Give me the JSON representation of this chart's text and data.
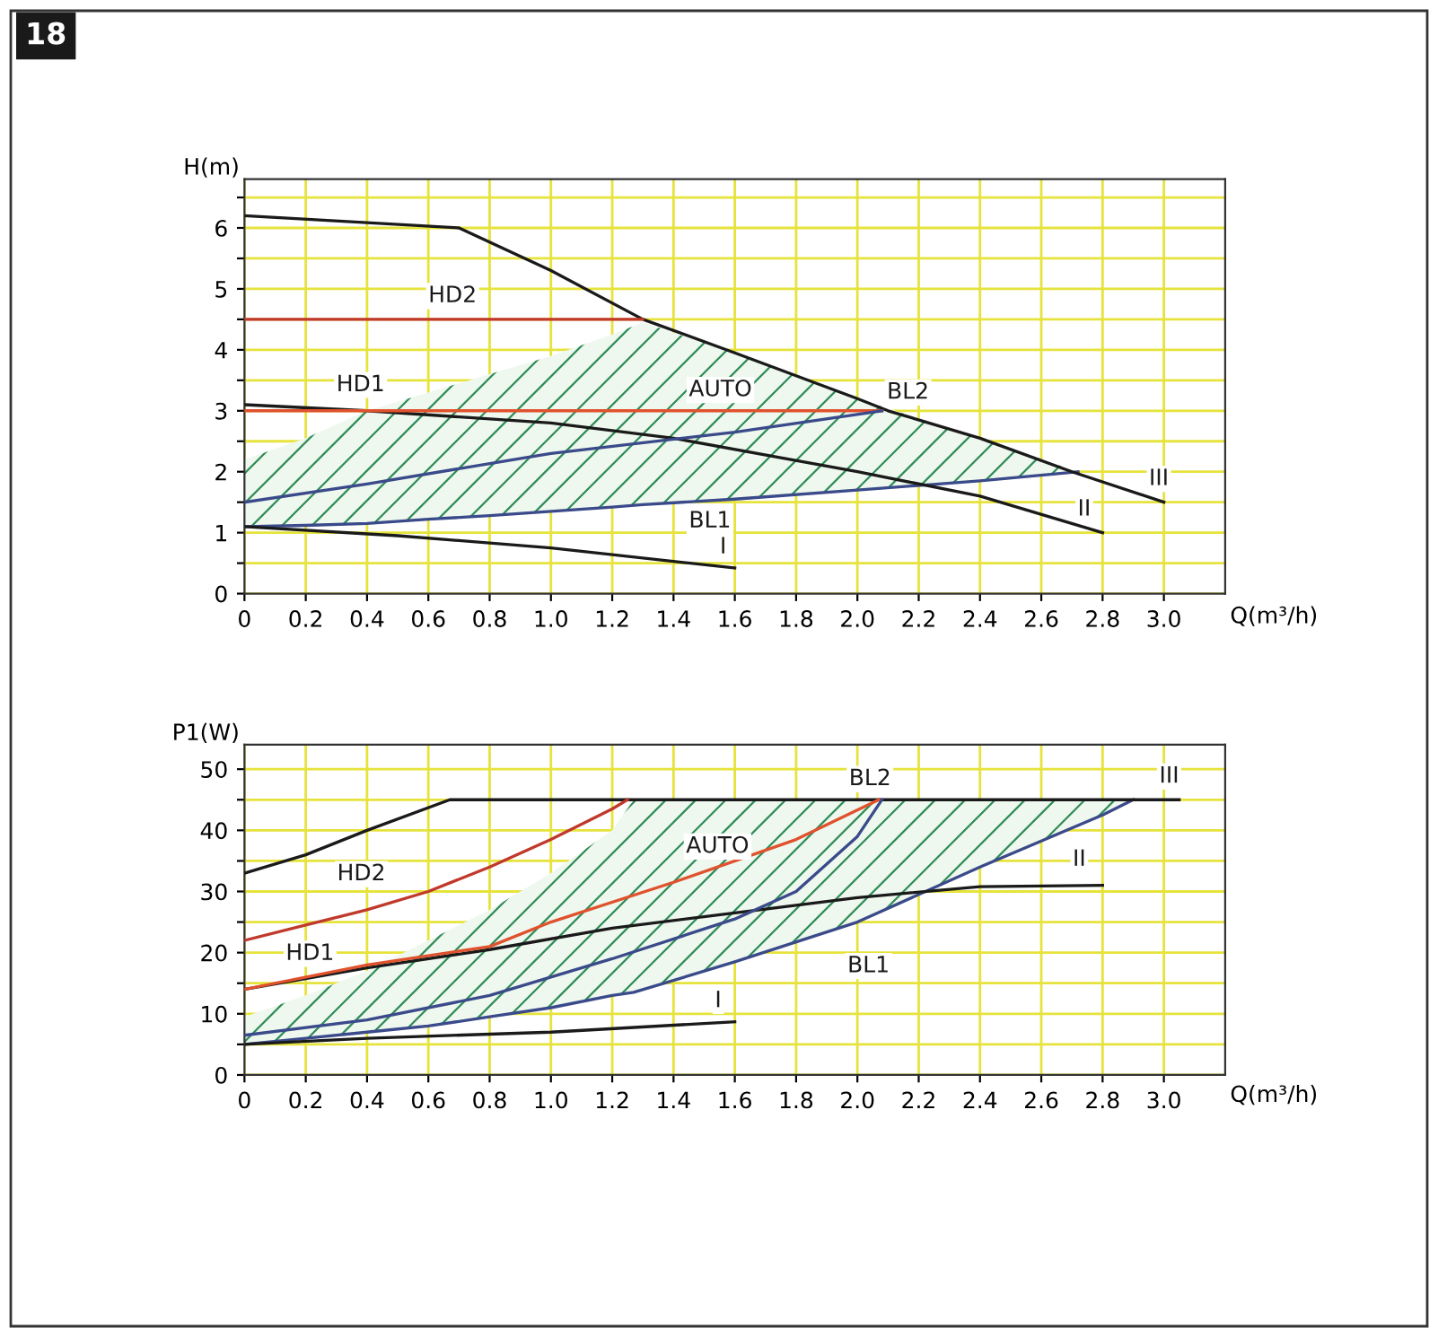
{
  "chart_data": [
    {
      "type": "line",
      "ylabel": "H(m)",
      "xlabel": "Q(m³/h)",
      "xlim": [
        0,
        3.2
      ],
      "ylim": [
        0,
        6.8
      ],
      "grid": true,
      "xticks": [
        0,
        0.2,
        0.4,
        0.6,
        0.8,
        {
          "value": 1,
          "label": "1.0"
        },
        1.2,
        1.4,
        1.6,
        1.8,
        {
          "value": 2,
          "label": "2.0"
        },
        2.2,
        2.4,
        2.6,
        2.8,
        {
          "value": 3,
          "label": "3.0"
        }
      ],
      "yticks": [
        0,
        {
          "value": 0.5,
          "label": null
        },
        1,
        {
          "value": 1.5,
          "label": null
        },
        2,
        {
          "value": 2.5,
          "label": null
        },
        3,
        {
          "value": 3.5,
          "label": null
        },
        4,
        {
          "value": 4.5,
          "label": null
        },
        5,
        {
          "value": 5.5,
          "label": null
        },
        6,
        {
          "value": 6.5,
          "label": null
        }
      ],
      "series": [
        {
          "color": "#3a4a8a",
          "x": [
            0,
            0.2,
            0.4,
            0.6,
            0.8,
            1.0,
            1.2,
            1.3,
            1.6,
            2.0,
            2.4,
            2.72
          ],
          "values": [
            1.1,
            1.12,
            1.15,
            1.22,
            1.28,
            1.35,
            1.42,
            1.46,
            1.55,
            1.7,
            1.85,
            2.0
          ],
          "lower": [
            1.1,
            1.12,
            1.15,
            1.22,
            1.28,
            1.35,
            1.42,
            1.46,
            1.55,
            1.7,
            1.85,
            2.0
          ],
          "upper": [
            2.2,
            2.55,
            3.0,
            3.3,
            3.6,
            3.9,
            4.25,
            4.45,
            3.95,
            3.2,
            2.55,
            2.0
          ]
        },
        {
          "color": "#1a1a1a",
          "x": [
            0,
            0.7,
            1.0,
            1.3,
            1.6,
            2.0,
            2.1,
            2.4,
            2.7,
            3.0
          ],
          "values": [
            6.2,
            6.0,
            5.3,
            4.5,
            3.95,
            3.2,
            3.0,
            2.55,
            2.0,
            1.5
          ]
        },
        {
          "color": "#1a1a1a",
          "x": [
            0,
            0.4,
            1.0,
            1.4,
            2.0,
            2.4,
            2.8
          ],
          "values": [
            3.1,
            3.0,
            2.8,
            2.55,
            2.0,
            1.6,
            1.0
          ]
        },
        {
          "color": "#1a1a1a",
          "x": [
            0,
            0.5,
            1.0,
            1.6
          ],
          "values": [
            1.1,
            0.95,
            0.75,
            0.42
          ]
        },
        {
          "color": "#c0392b",
          "x": [
            0,
            1.3
          ],
          "values": [
            4.5,
            4.5
          ]
        },
        {
          "color": "#e0522d",
          "x": [
            0,
            2.08
          ],
          "values": [
            3.0,
            3.0
          ]
        },
        {
          "color": "#3a4a8a",
          "x": [
            0,
            0.4,
            1.0,
            1.6,
            2.08
          ],
          "values": [
            1.5,
            1.8,
            2.3,
            2.65,
            3.0
          ]
        }
      ],
      "annotations": [
        "18",
        {
          "text": "HD2",
          "x": 0.6,
          "y": 4.5
        },
        {
          "text": "HD1",
          "x": 0.3,
          "y": 3.0
        },
        {
          "text": "AUTO",
          "x": 1.45,
          "y": 3.0
        },
        {
          "text": "BL2",
          "x": 2.08,
          "y": 3.0
        },
        {
          "text": "BL1",
          "x": 1.45,
          "y": 1.5
        },
        {
          "text": "III",
          "x": 3.0,
          "y": 1.5
        },
        {
          "text": "II",
          "x": 2.8,
          "y": 1.0
        },
        {
          "text": "I",
          "x": 1.6,
          "y": 0.42
        }
      ]
    },
    {
      "type": "line",
      "ylabel": "P1(W)",
      "xlabel": "Q(m³/h)",
      "xlim": [
        0,
        3.2
      ],
      "ylim": [
        0,
        54
      ],
      "grid": true,
      "xticks": [
        0,
        0.2,
        0.4,
        0.6,
        0.8,
        {
          "value": 1,
          "label": "1.0"
        },
        1.2,
        1.4,
        1.6,
        1.8,
        {
          "value": 2,
          "label": "2.0"
        },
        2.2,
        2.4,
        2.6,
        2.8,
        {
          "value": 3,
          "label": "3.0"
        }
      ],
      "yticks": [
        0,
        {
          "value": 5,
          "label": null
        },
        10,
        {
          "value": 15,
          "label": null
        },
        20,
        {
          "value": 25,
          "label": null
        },
        30,
        {
          "value": 35,
          "label": null
        },
        40,
        {
          "value": 45,
          "label": null
        },
        50
      ],
      "series": [
        {
          "color": "#3a4a8a",
          "x": [
            0,
            0.2,
            0.4,
            0.6,
            0.8,
            1.0,
            1.2,
            1.27,
            1.6,
            2.0,
            2.4,
            2.8,
            2.9
          ],
          "values": [
            5,
            6,
            7,
            8,
            9.5,
            11,
            13,
            13.5,
            18.5,
            25,
            34,
            42.5,
            45
          ],
          "lower": [
            5,
            6,
            7,
            8,
            9.5,
            11,
            13,
            13.5,
            18.5,
            25,
            34,
            42.5,
            45
          ],
          "upper": [
            9.5,
            13,
            17,
            22,
            27,
            33,
            40,
            45,
            45,
            45,
            45,
            45,
            45
          ]
        },
        {
          "color": "#1a1a1a",
          "x": [
            0,
            0.2,
            0.4,
            0.67,
            3.05
          ],
          "values": [
            33,
            36,
            40,
            45,
            45
          ]
        },
        {
          "color": "#1a1a1a",
          "x": [
            0,
            0.4,
            0.8,
            1.2,
            1.6,
            2.0,
            2.4,
            2.8
          ],
          "values": [
            14,
            17.5,
            20.5,
            24,
            26.5,
            29,
            30.8,
            31
          ]
        },
        {
          "color": "#1a1a1a",
          "x": [
            0,
            0.4,
            1.0,
            1.6
          ],
          "values": [
            5,
            6,
            7,
            8.7
          ]
        },
        {
          "color": "#c0392b",
          "x": [
            0,
            0.2,
            0.4,
            0.6,
            0.8,
            1.0,
            1.2,
            1.25
          ],
          "values": [
            22,
            24.5,
            27,
            30,
            34,
            38.5,
            43.5,
            45
          ]
        },
        {
          "color": "#e0522d",
          "x": [
            0,
            0.4,
            0.8,
            1.0,
            1.4,
            1.8,
            2.07
          ],
          "values": [
            14,
            18,
            21,
            25,
            31.5,
            38.5,
            45
          ]
        },
        {
          "color": "#3a4a8a",
          "x": [
            0,
            0.4,
            0.8,
            1.2,
            1.6,
            1.8,
            2.0,
            2.08
          ],
          "values": [
            6.5,
            9,
            13,
            19,
            25.5,
            30,
            39,
            45
          ]
        }
      ],
      "annotations": [
        {
          "text": "HD2",
          "x": 0.4,
          "y": 27
        },
        {
          "text": "HD1",
          "x": 0.2,
          "y": 16
        },
        {
          "text": "AUTO",
          "x": 1.4,
          "y": 31.5
        },
        {
          "text": "BL2",
          "x": 2.07,
          "y": 45
        },
        {
          "text": "BL1",
          "x": 2.0,
          "y": 25
        },
        {
          "text": "III",
          "x": 3.05,
          "y": 45
        },
        {
          "text": "II",
          "x": 2.8,
          "y": 31
        },
        {
          "text": "I",
          "x": 1.6,
          "y": 8.7
        }
      ]
    }
  ]
}
